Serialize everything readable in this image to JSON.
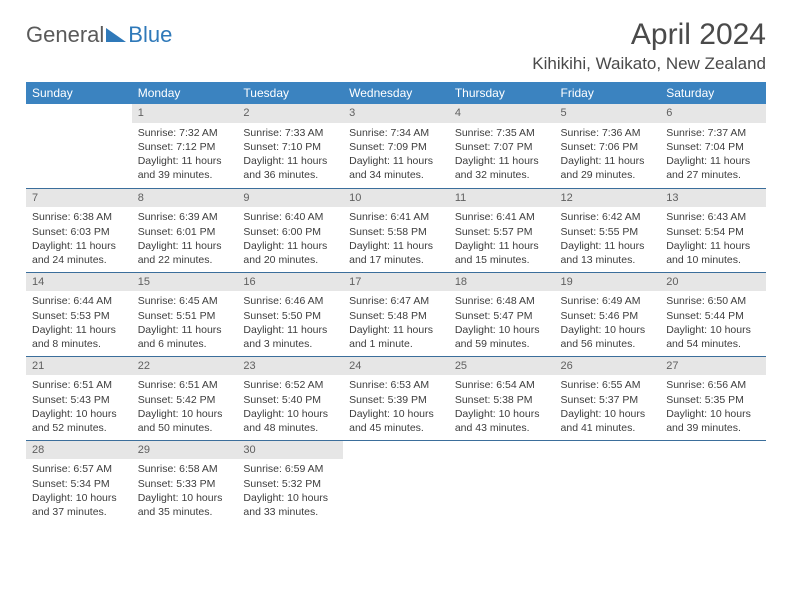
{
  "brand": {
    "part1": "General",
    "part2": "Blue"
  },
  "title": "April 2024",
  "location": "Kihikihi, Waikato, New Zealand",
  "colors": {
    "header_bg": "#3b83c0",
    "header_text": "#ffffff",
    "daynum_bg": "#e6e6e6",
    "daynum_text": "#606060",
    "border": "#3b6e9b",
    "body_text": "#3d3d3d",
    "title_text": "#4a4a4a",
    "logo_gray": "#5a5a5a",
    "logo_blue": "#2f79b9",
    "background": "#ffffff"
  },
  "typography": {
    "title_fontsize": 30,
    "location_fontsize": 17,
    "header_fontsize": 12,
    "cell_fontsize": 10.5,
    "daynum_fontsize": 11,
    "logo_fontsize": 22
  },
  "day_headers": [
    "Sunday",
    "Monday",
    "Tuesday",
    "Wednesday",
    "Thursday",
    "Friday",
    "Saturday"
  ],
  "weeks": [
    [
      {
        "n": "",
        "sr": "",
        "ss": "",
        "d1": "",
        "d2": "",
        "empty": true
      },
      {
        "n": "1",
        "sr": "Sunrise: 7:32 AM",
        "ss": "Sunset: 7:12 PM",
        "d1": "Daylight: 11 hours",
        "d2": "and 39 minutes."
      },
      {
        "n": "2",
        "sr": "Sunrise: 7:33 AM",
        "ss": "Sunset: 7:10 PM",
        "d1": "Daylight: 11 hours",
        "d2": "and 36 minutes."
      },
      {
        "n": "3",
        "sr": "Sunrise: 7:34 AM",
        "ss": "Sunset: 7:09 PM",
        "d1": "Daylight: 11 hours",
        "d2": "and 34 minutes."
      },
      {
        "n": "4",
        "sr": "Sunrise: 7:35 AM",
        "ss": "Sunset: 7:07 PM",
        "d1": "Daylight: 11 hours",
        "d2": "and 32 minutes."
      },
      {
        "n": "5",
        "sr": "Sunrise: 7:36 AM",
        "ss": "Sunset: 7:06 PM",
        "d1": "Daylight: 11 hours",
        "d2": "and 29 minutes."
      },
      {
        "n": "6",
        "sr": "Sunrise: 7:37 AM",
        "ss": "Sunset: 7:04 PM",
        "d1": "Daylight: 11 hours",
        "d2": "and 27 minutes."
      }
    ],
    [
      {
        "n": "7",
        "sr": "Sunrise: 6:38 AM",
        "ss": "Sunset: 6:03 PM",
        "d1": "Daylight: 11 hours",
        "d2": "and 24 minutes."
      },
      {
        "n": "8",
        "sr": "Sunrise: 6:39 AM",
        "ss": "Sunset: 6:01 PM",
        "d1": "Daylight: 11 hours",
        "d2": "and 22 minutes."
      },
      {
        "n": "9",
        "sr": "Sunrise: 6:40 AM",
        "ss": "Sunset: 6:00 PM",
        "d1": "Daylight: 11 hours",
        "d2": "and 20 minutes."
      },
      {
        "n": "10",
        "sr": "Sunrise: 6:41 AM",
        "ss": "Sunset: 5:58 PM",
        "d1": "Daylight: 11 hours",
        "d2": "and 17 minutes."
      },
      {
        "n": "11",
        "sr": "Sunrise: 6:41 AM",
        "ss": "Sunset: 5:57 PM",
        "d1": "Daylight: 11 hours",
        "d2": "and 15 minutes."
      },
      {
        "n": "12",
        "sr": "Sunrise: 6:42 AM",
        "ss": "Sunset: 5:55 PM",
        "d1": "Daylight: 11 hours",
        "d2": "and 13 minutes."
      },
      {
        "n": "13",
        "sr": "Sunrise: 6:43 AM",
        "ss": "Sunset: 5:54 PM",
        "d1": "Daylight: 11 hours",
        "d2": "and 10 minutes."
      }
    ],
    [
      {
        "n": "14",
        "sr": "Sunrise: 6:44 AM",
        "ss": "Sunset: 5:53 PM",
        "d1": "Daylight: 11 hours",
        "d2": "and 8 minutes."
      },
      {
        "n": "15",
        "sr": "Sunrise: 6:45 AM",
        "ss": "Sunset: 5:51 PM",
        "d1": "Daylight: 11 hours",
        "d2": "and 6 minutes."
      },
      {
        "n": "16",
        "sr": "Sunrise: 6:46 AM",
        "ss": "Sunset: 5:50 PM",
        "d1": "Daylight: 11 hours",
        "d2": "and 3 minutes."
      },
      {
        "n": "17",
        "sr": "Sunrise: 6:47 AM",
        "ss": "Sunset: 5:48 PM",
        "d1": "Daylight: 11 hours",
        "d2": "and 1 minute."
      },
      {
        "n": "18",
        "sr": "Sunrise: 6:48 AM",
        "ss": "Sunset: 5:47 PM",
        "d1": "Daylight: 10 hours",
        "d2": "and 59 minutes."
      },
      {
        "n": "19",
        "sr": "Sunrise: 6:49 AM",
        "ss": "Sunset: 5:46 PM",
        "d1": "Daylight: 10 hours",
        "d2": "and 56 minutes."
      },
      {
        "n": "20",
        "sr": "Sunrise: 6:50 AM",
        "ss": "Sunset: 5:44 PM",
        "d1": "Daylight: 10 hours",
        "d2": "and 54 minutes."
      }
    ],
    [
      {
        "n": "21",
        "sr": "Sunrise: 6:51 AM",
        "ss": "Sunset: 5:43 PM",
        "d1": "Daylight: 10 hours",
        "d2": "and 52 minutes."
      },
      {
        "n": "22",
        "sr": "Sunrise: 6:51 AM",
        "ss": "Sunset: 5:42 PM",
        "d1": "Daylight: 10 hours",
        "d2": "and 50 minutes."
      },
      {
        "n": "23",
        "sr": "Sunrise: 6:52 AM",
        "ss": "Sunset: 5:40 PM",
        "d1": "Daylight: 10 hours",
        "d2": "and 48 minutes."
      },
      {
        "n": "24",
        "sr": "Sunrise: 6:53 AM",
        "ss": "Sunset: 5:39 PM",
        "d1": "Daylight: 10 hours",
        "d2": "and 45 minutes."
      },
      {
        "n": "25",
        "sr": "Sunrise: 6:54 AM",
        "ss": "Sunset: 5:38 PM",
        "d1": "Daylight: 10 hours",
        "d2": "and 43 minutes."
      },
      {
        "n": "26",
        "sr": "Sunrise: 6:55 AM",
        "ss": "Sunset: 5:37 PM",
        "d1": "Daylight: 10 hours",
        "d2": "and 41 minutes."
      },
      {
        "n": "27",
        "sr": "Sunrise: 6:56 AM",
        "ss": "Sunset: 5:35 PM",
        "d1": "Daylight: 10 hours",
        "d2": "and 39 minutes."
      }
    ],
    [
      {
        "n": "28",
        "sr": "Sunrise: 6:57 AM",
        "ss": "Sunset: 5:34 PM",
        "d1": "Daylight: 10 hours",
        "d2": "and 37 minutes."
      },
      {
        "n": "29",
        "sr": "Sunrise: 6:58 AM",
        "ss": "Sunset: 5:33 PM",
        "d1": "Daylight: 10 hours",
        "d2": "and 35 minutes."
      },
      {
        "n": "30",
        "sr": "Sunrise: 6:59 AM",
        "ss": "Sunset: 5:32 PM",
        "d1": "Daylight: 10 hours",
        "d2": "and 33 minutes."
      },
      {
        "n": "",
        "sr": "",
        "ss": "",
        "d1": "",
        "d2": "",
        "empty": true
      },
      {
        "n": "",
        "sr": "",
        "ss": "",
        "d1": "",
        "d2": "",
        "empty": true
      },
      {
        "n": "",
        "sr": "",
        "ss": "",
        "d1": "",
        "d2": "",
        "empty": true
      },
      {
        "n": "",
        "sr": "",
        "ss": "",
        "d1": "",
        "d2": "",
        "empty": true
      }
    ]
  ]
}
